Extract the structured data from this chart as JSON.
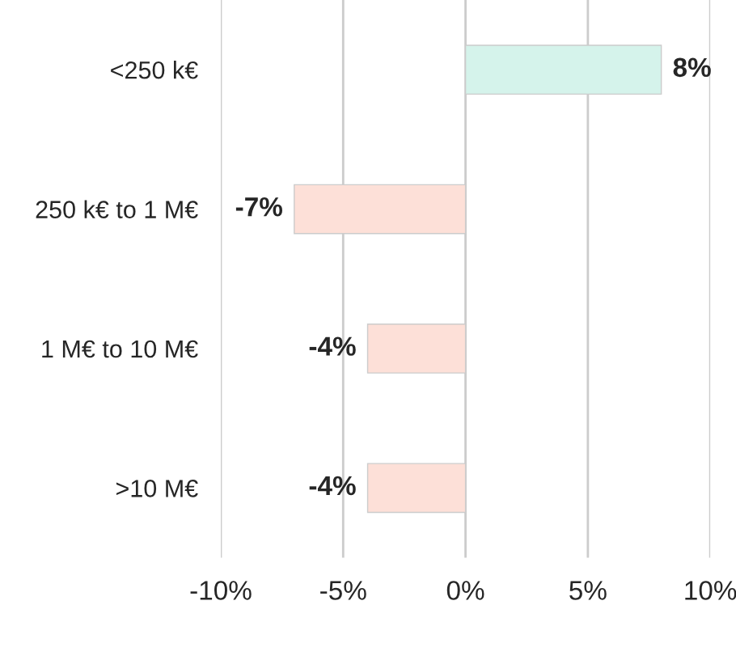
{
  "chart_data": {
    "type": "bar",
    "orientation": "horizontal",
    "categories": [
      "<250 k€",
      "250 k€ to 1 M€",
      "1 M€ to 10 M€",
      ">10 M€"
    ],
    "values": [
      8,
      -7,
      -4,
      -4
    ],
    "colors": [
      "#d5f3eb",
      "#fde0d8",
      "#fde0d8",
      "#fde0d8"
    ],
    "value_labels": [
      "8%",
      "-7%",
      "-4%",
      "-4%"
    ],
    "xlim": [
      -10,
      10
    ],
    "xticks": [
      {
        "value": -10,
        "label": "-10%"
      },
      {
        "value": -5,
        "label": "-5%"
      },
      {
        "value": 0,
        "label": "0%"
      },
      {
        "value": 5,
        "label": "5%"
      },
      {
        "value": 10,
        "label": "10%"
      }
    ],
    "grid": "x",
    "legend": false
  }
}
